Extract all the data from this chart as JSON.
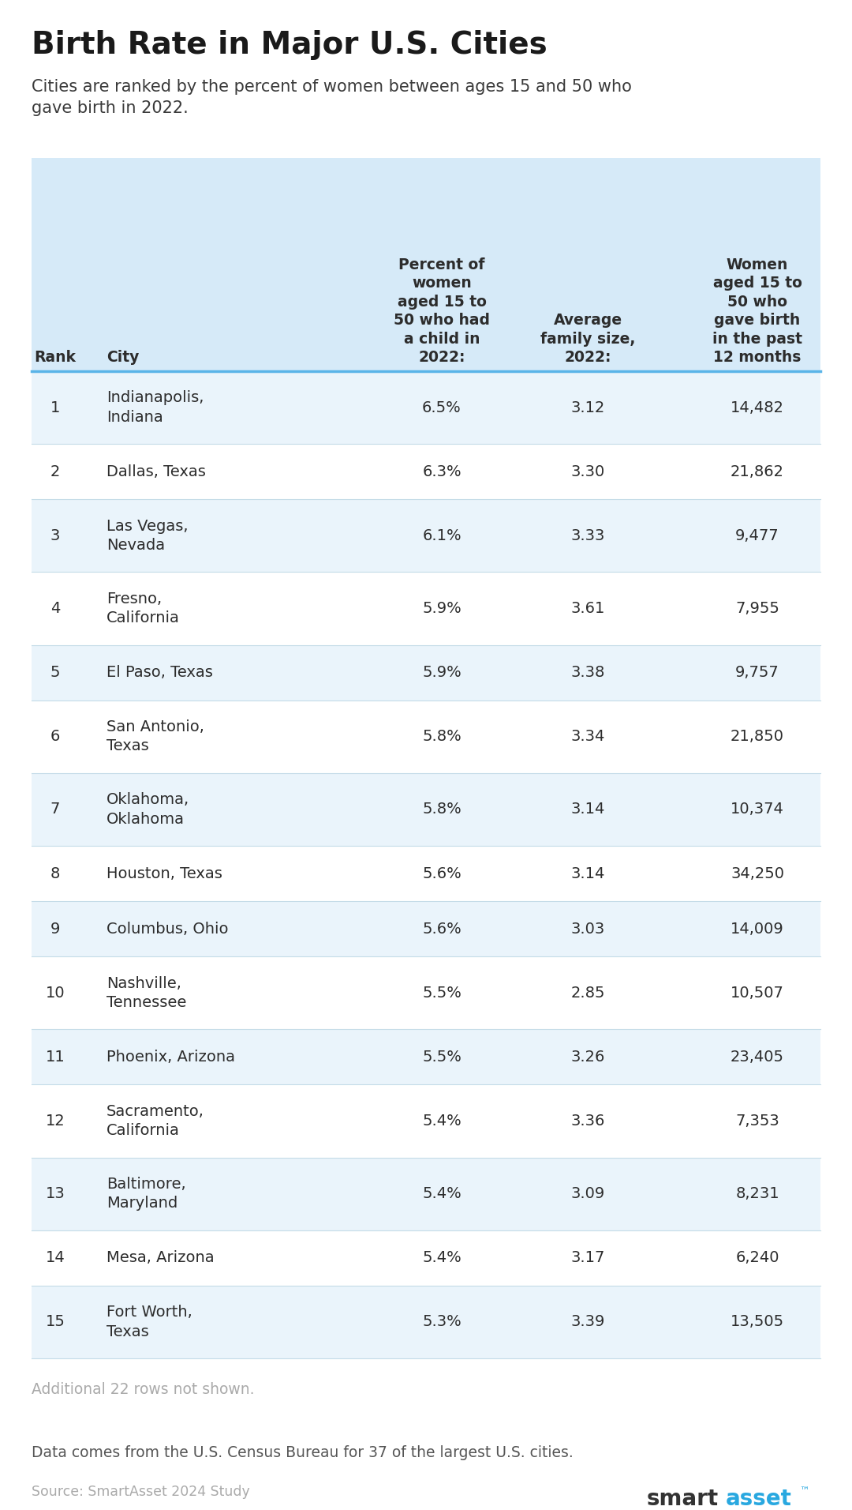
{
  "title": "Birth Rate in Major U.S. Cities",
  "subtitle": "Cities are ranked by the percent of women between ages 15 and 50 who\ngave birth in 2022.",
  "col_headers": [
    "Rank",
    "City",
    "Percent of\nwomen\naged 15 to\n50 who had\na child in\n2022:",
    "Average\nfamily size,\n2022:",
    "Women\naged 15 to\n50 who\ngave birth\nin the past\n12 months"
  ],
  "rows": [
    [
      "1",
      "Indianapolis,\nIndiana",
      "6.5%",
      "3.12",
      "14,482"
    ],
    [
      "2",
      "Dallas, Texas",
      "6.3%",
      "3.30",
      "21,862"
    ],
    [
      "3",
      "Las Vegas,\nNevada",
      "6.1%",
      "3.33",
      "9,477"
    ],
    [
      "4",
      "Fresno,\nCalifornia",
      "5.9%",
      "3.61",
      "7,955"
    ],
    [
      "5",
      "El Paso, Texas",
      "5.9%",
      "3.38",
      "9,757"
    ],
    [
      "6",
      "San Antonio,\nTexas",
      "5.8%",
      "3.34",
      "21,850"
    ],
    [
      "7",
      "Oklahoma,\nOklahoma",
      "5.8%",
      "3.14",
      "10,374"
    ],
    [
      "8",
      "Houston, Texas",
      "5.6%",
      "3.14",
      "34,250"
    ],
    [
      "9",
      "Columbus, Ohio",
      "5.6%",
      "3.03",
      "14,009"
    ],
    [
      "10",
      "Nashville,\nTennessee",
      "5.5%",
      "2.85",
      "10,507"
    ],
    [
      "11",
      "Phoenix, Arizona",
      "5.5%",
      "3.26",
      "23,405"
    ],
    [
      "12",
      "Sacramento,\nCalifornia",
      "5.4%",
      "3.36",
      "7,353"
    ],
    [
      "13",
      "Baltimore,\nMaryland",
      "5.4%",
      "3.09",
      "8,231"
    ],
    [
      "14",
      "Mesa, Arizona",
      "5.4%",
      "3.17",
      "6,240"
    ],
    [
      "15",
      "Fort Worth,\nTexas",
      "5.3%",
      "3.39",
      "13,505"
    ]
  ],
  "two_line_rows": [
    0,
    2,
    3,
    5,
    6,
    9,
    11,
    12,
    14
  ],
  "footer_note": "Additional 22 rows not shown.",
  "footer_data": "Data comes from the U.S. Census Bureau for 37 of the largest U.S. cities.",
  "footer_source": "Source: SmartAsset 2024 Study",
  "header_bg": "#d6eaf8",
  "row_bg_odd": "#eaf4fb",
  "row_bg_even": "#ffffff",
  "header_text_color": "#2c2c2c",
  "row_text_color": "#2c2c2c",
  "title_color": "#1a1a1a",
  "subtitle_color": "#3a3a3a",
  "footer_note_color": "#aaaaaa",
  "footer_data_color": "#555555",
  "footer_source_color": "#aaaaaa",
  "divider_color": "#5ab4e8",
  "row_divider_color": "#c5dce8",
  "background_color": "#ffffff",
  "smart_color": "#333333",
  "asset_color": "#29a8e0"
}
